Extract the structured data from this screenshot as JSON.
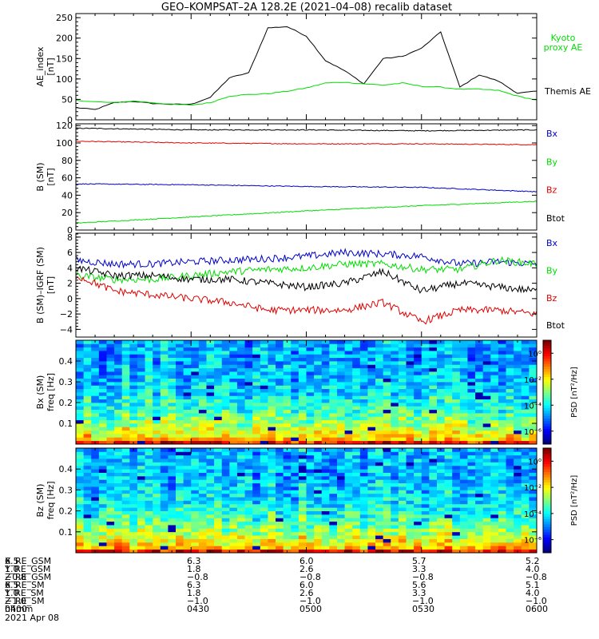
{
  "title": "GEO–KOMPSAT–2A 128.2E (2021–04–08) recalib dataset",
  "colors": {
    "black": "#000000",
    "red": "#e00000",
    "green": "#00dd00",
    "blue": "#0000c8",
    "kyoto": "#00dd00"
  },
  "chart_data": [
    {
      "type": "line",
      "panel": "ae",
      "ylabel": "AE_index",
      "yunit": "[nT]",
      "ylim": [
        0,
        260
      ],
      "yticks": [
        "0",
        "50",
        "100",
        "150",
        "200",
        "250"
      ],
      "xlim": [
        "04:00",
        "06:00"
      ],
      "legend": [
        {
          "name": "Kyoto proxy AE",
          "color": "#00dd00"
        },
        {
          "name": "Themis AE",
          "color": "#000000"
        }
      ],
      "series": [
        {
          "name": "Themis AE",
          "color": "#000000",
          "x": [
            "04:00",
            "04:05",
            "04:10",
            "04:15",
            "04:20",
            "04:25",
            "04:30",
            "04:35",
            "04:40",
            "04:45",
            "04:50",
            "04:55",
            "05:00",
            "05:05",
            "05:10",
            "05:15",
            "05:20",
            "05:25",
            "05:30",
            "05:35",
            "05:40",
            "05:45",
            "05:50",
            "05:55",
            "06:00"
          ],
          "values": [
            30,
            25,
            42,
            45,
            40,
            38,
            38,
            55,
            103,
            115,
            225,
            228,
            205,
            145,
            120,
            88,
            150,
            155,
            175,
            215,
            80,
            110,
            95,
            65,
            70
          ]
        },
        {
          "name": "Kyoto proxy AE",
          "color": "#00dd00",
          "x": [
            "04:00",
            "04:05",
            "04:10",
            "04:15",
            "04:20",
            "04:25",
            "04:30",
            "04:35",
            "04:40",
            "04:45",
            "04:50",
            "04:55",
            "05:00",
            "05:05",
            "05:10",
            "05:15",
            "05:20",
            "05:25",
            "05:30",
            "05:35",
            "05:40",
            "05:45",
            "05:50",
            "05:55",
            "06:00"
          ],
          "values": [
            48,
            44,
            42,
            46,
            42,
            38,
            36,
            42,
            58,
            62,
            64,
            70,
            78,
            90,
            92,
            88,
            85,
            90,
            82,
            80,
            75,
            75,
            72,
            58,
            48
          ]
        }
      ]
    },
    {
      "type": "line",
      "panel": "b_sm",
      "ylabel": "B (SM)",
      "yunit": "[nT]",
      "ylim": [
        0,
        122
      ],
      "yticks": [
        "0",
        "20",
        "40",
        "60",
        "80",
        "100",
        "120"
      ],
      "xlim": [
        "04:00",
        "06:00"
      ],
      "legend": [
        {
          "name": "Bx",
          "color": "#0000c8"
        },
        {
          "name": "By",
          "color": "#00dd00"
        },
        {
          "name": "Bz",
          "color": "#e00000"
        },
        {
          "name": "Btot",
          "color": "#000000"
        }
      ],
      "series": [
        {
          "name": "Btot",
          "color": "#000000",
          "x": [
            "04:00",
            "04:30",
            "05:00",
            "05:30",
            "06:00"
          ],
          "values": [
            117,
            115,
            115,
            114,
            115
          ]
        },
        {
          "name": "Bz",
          "color": "#e00000",
          "x": [
            "04:00",
            "04:30",
            "05:00",
            "05:30",
            "06:00"
          ],
          "values": [
            102,
            100,
            99,
            99,
            98
          ]
        },
        {
          "name": "Bx",
          "color": "#0000c8",
          "x": [
            "04:00",
            "04:30",
            "05:00",
            "05:30",
            "06:00"
          ],
          "values": [
            53,
            52,
            50,
            49,
            44
          ]
        },
        {
          "name": "By",
          "color": "#00dd00",
          "x": [
            "04:00",
            "04:30",
            "05:00",
            "05:30",
            "06:00"
          ],
          "values": [
            8,
            15,
            22,
            28,
            33
          ]
        }
      ]
    },
    {
      "type": "line",
      "panel": "b_minus_igrf",
      "ylabel": "B (SM)–IGRF (SM)",
      "yunit": "[nT]",
      "ylim": [
        -5,
        8.5
      ],
      "yticks": [
        "−4",
        "−2",
        "0",
        "2",
        "4",
        "6",
        "8"
      ],
      "xlim": [
        "04:00",
        "06:00"
      ],
      "legend": [
        {
          "name": "Bx",
          "color": "#0000c8"
        },
        {
          "name": "By",
          "color": "#00dd00"
        },
        {
          "name": "Bz",
          "color": "#e00000"
        },
        {
          "name": "Btot",
          "color": "#000000"
        }
      ],
      "series": [
        {
          "name": "Bx",
          "color": "#0000c8",
          "x": [
            "04:00",
            "04:10",
            "04:20",
            "04:30",
            "04:40",
            "04:50",
            "05:00",
            "05:10",
            "05:20",
            "05:30",
            "05:40",
            "05:50",
            "06:00"
          ],
          "values": [
            5,
            4.5,
            4.5,
            4.8,
            5.0,
            5.2,
            5.5,
            6.0,
            5.8,
            5.5,
            4.5,
            4.8,
            4.5
          ]
        },
        {
          "name": "By",
          "color": "#00dd00",
          "x": [
            "04:00",
            "04:10",
            "04:20",
            "04:30",
            "04:40",
            "04:50",
            "05:00",
            "05:10",
            "05:20",
            "05:30",
            "05:40",
            "05:50",
            "06:00"
          ],
          "values": [
            3,
            2.5,
            2.5,
            3,
            3.5,
            3.8,
            4,
            4.5,
            4.5,
            3.8,
            3.8,
            5.0,
            4.5
          ]
        },
        {
          "name": "Btot",
          "color": "#000000",
          "x": [
            "04:00",
            "04:10",
            "04:20",
            "04:30",
            "04:40",
            "04:50",
            "05:00",
            "05:10",
            "05:20",
            "05:30",
            "05:40",
            "05:50",
            "06:00"
          ],
          "values": [
            4,
            3,
            3,
            2.5,
            2.5,
            2,
            1.5,
            2,
            3.5,
            1,
            2,
            1.5,
            1
          ]
        },
        {
          "name": "Bz",
          "color": "#e00000",
          "x": [
            "04:00",
            "04:10",
            "04:20",
            "04:30",
            "04:40",
            "04:50",
            "05:00",
            "05:10",
            "05:20",
            "05:30",
            "05:40",
            "05:50",
            "06:00"
          ],
          "values": [
            3,
            1,
            0.5,
            0,
            -0.5,
            -1.5,
            -1.5,
            -1.5,
            -0.5,
            -3,
            -1.5,
            -1.5,
            -2
          ]
        }
      ]
    },
    {
      "type": "heatmap",
      "panel": "bx_psd",
      "ylabel": "Bx (SM)",
      "yunit": "freq [Hz]",
      "ylim": [
        0,
        0.5
      ],
      "yticks": [
        "0.1",
        "0.2",
        "0.3",
        "0.4"
      ],
      "xlim": [
        "04:00",
        "06:00"
      ],
      "colorbar": {
        "label": "PSD [nT²/Hz]",
        "scale": "log",
        "ticks": [
          "10⁰",
          "10⁻²",
          "10⁻⁴",
          "10⁻⁶"
        ],
        "range": [
          -7,
          1
        ]
      }
    },
    {
      "type": "heatmap",
      "panel": "bz_psd",
      "ylabel": "Bz (SM)",
      "yunit": "freq [Hz]",
      "ylim": [
        0,
        0.5
      ],
      "yticks": [
        "0.1",
        "0.2",
        "0.3",
        "0.4"
      ],
      "xlim": [
        "04:00",
        "06:00"
      ],
      "colorbar": {
        "label": "PSD [nT²/Hz]",
        "scale": "log",
        "ticks": [
          "10⁰",
          "10⁻²",
          "10⁻⁴",
          "10⁻⁶"
        ],
        "range": [
          -7,
          1
        ]
      }
    }
  ],
  "ephemeris": {
    "rows": [
      {
        "label": "X_RE_GSM",
        "values": [
          "6.5",
          "6.3",
          "6.0",
          "5.7",
          "5.2"
        ]
      },
      {
        "label": "Y_RE_GSM",
        "values": [
          "1.0",
          "1.8",
          "2.6",
          "3.3",
          "4.0"
        ]
      },
      {
        "label": "Z_RE_GSM",
        "values": [
          "−0.8",
          "−0.8",
          "−0.8",
          "−0.8",
          "−0.8"
        ]
      },
      {
        "label": "X_RE_SM",
        "values": [
          "6.5",
          "6.3",
          "6.0",
          "5.6",
          "5.1"
        ]
      },
      {
        "label": "Y_RE_SM",
        "values": [
          "1.0",
          "1.8",
          "2.6",
          "3.3",
          "4.0"
        ]
      },
      {
        "label": "Z_RE_SM",
        "values": [
          "−1.0",
          "−1.0",
          "−1.0",
          "−1.0",
          "−1.0"
        ]
      },
      {
        "label": "hhmm",
        "values": [
          "0400",
          "0430",
          "0500",
          "0530",
          "0600"
        ]
      }
    ],
    "date": "2021 Apr 08"
  }
}
